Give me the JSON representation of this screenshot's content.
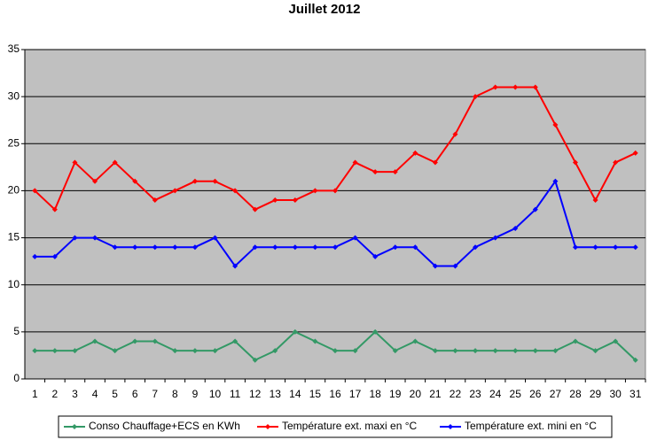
{
  "chart_data": {
    "type": "line",
    "title": "Juillet 2012",
    "categories": [
      "1",
      "2",
      "3",
      "4",
      "5",
      "6",
      "7",
      "8",
      "9",
      "10",
      "11",
      "12",
      "13",
      "14",
      "15",
      "16",
      "17",
      "18",
      "19",
      "20",
      "21",
      "22",
      "23",
      "24",
      "25",
      "26",
      "27",
      "28",
      "29",
      "30",
      "31"
    ],
    "series": [
      {
        "name": "Conso Chauffage+ECS en KWh",
        "color": "#339966",
        "values": [
          3,
          3,
          3,
          4,
          3,
          4,
          4,
          3,
          3,
          3,
          4,
          2,
          3,
          5,
          4,
          3,
          3,
          5,
          3,
          4,
          3,
          3,
          3,
          3,
          3,
          3,
          3,
          4,
          3,
          4,
          2
        ]
      },
      {
        "name": "Température ext. maxi en °C",
        "color": "#ff0000",
        "values": [
          20,
          18,
          23,
          21,
          23,
          21,
          19,
          20,
          21,
          21,
          20,
          18,
          19,
          19,
          20,
          20,
          23,
          22,
          22,
          24,
          23,
          26,
          30,
          31,
          31,
          31,
          27,
          23,
          19,
          23,
          24
        ]
      },
      {
        "name": "Température ext. mini en °C",
        "color": "#0000ff",
        "values": [
          13,
          13,
          15,
          15,
          14,
          14,
          14,
          14,
          14,
          15,
          12,
          14,
          14,
          14,
          14,
          14,
          15,
          13,
          14,
          14,
          12,
          12,
          14,
          15,
          16,
          18,
          21,
          14,
          14,
          14,
          14
        ]
      }
    ],
    "ylim": [
      0,
      35
    ],
    "yticks": [
      0,
      5,
      10,
      15,
      20,
      25,
      30,
      35
    ],
    "grid": true,
    "plot_background": "#c0c0c0",
    "legend": "bottom"
  }
}
